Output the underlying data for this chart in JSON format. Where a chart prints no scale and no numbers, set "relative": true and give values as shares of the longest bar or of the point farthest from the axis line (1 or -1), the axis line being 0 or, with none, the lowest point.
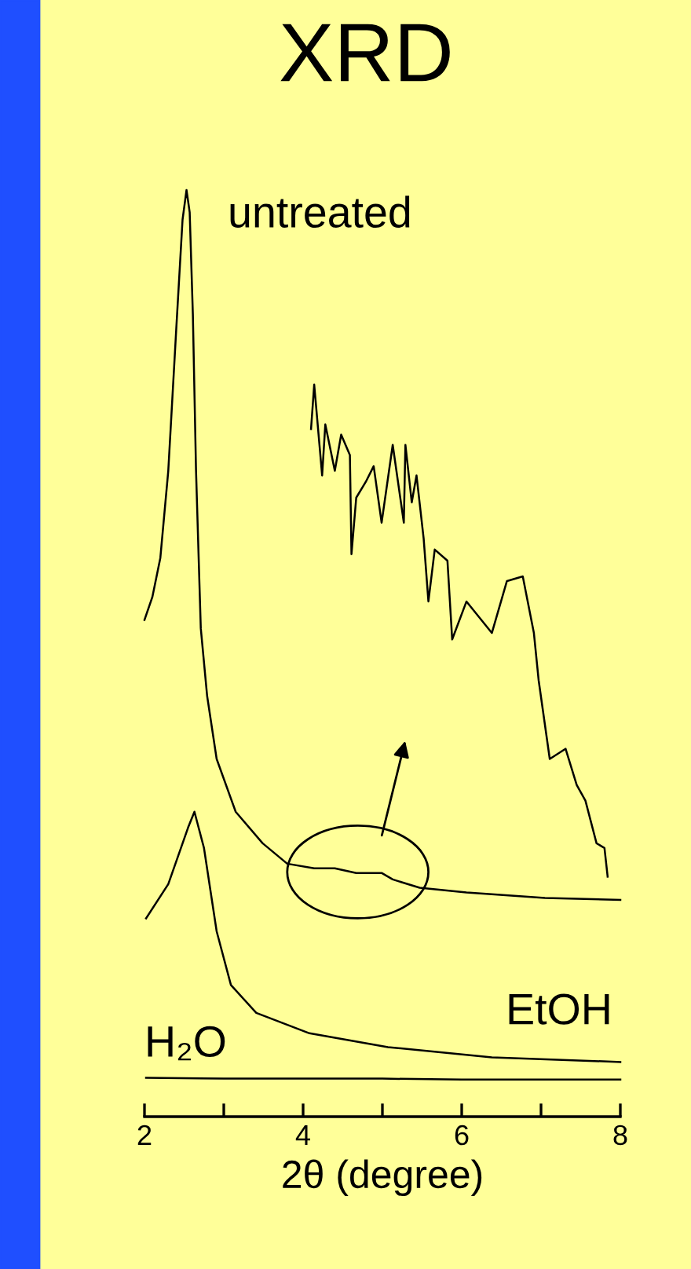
{
  "chart_data": {
    "type": "line",
    "title": "XRD",
    "xlabel": "2θ (degree)",
    "relative": true,
    "xlim": [
      2,
      8
    ],
    "xticks": [
      2,
      {
        "value": 3,
        "label": null
      },
      4,
      {
        "value": 5,
        "label": null
      },
      6,
      {
        "value": 7,
        "label": null
      },
      8
    ],
    "grid": false,
    "legend": false,
    "marker": "none",
    "line_style": "solid",
    "series": [
      {
        "name": "untreated",
        "color": "#000000",
        "x": [
          2.0,
          2.1,
          2.2,
          2.3,
          2.4,
          2.48,
          2.53,
          2.57,
          2.61,
          2.65,
          2.71,
          2.79,
          2.91,
          3.15,
          3.49,
          3.8,
          4.14,
          4.4,
          4.67,
          4.99,
          5.13,
          5.47,
          6.06,
          7.05,
          8.0
        ],
        "values": [
          0.536,
          0.561,
          0.603,
          0.697,
          0.849,
          0.968,
          1.0,
          0.976,
          0.866,
          0.697,
          0.527,
          0.454,
          0.386,
          0.329,
          0.295,
          0.273,
          0.268,
          0.268,
          0.263,
          0.263,
          0.256,
          0.247,
          0.242,
          0.236,
          0.234
        ]
      },
      {
        "name": "EtOH",
        "color": "#000000",
        "x": [
          2.02,
          2.3,
          2.55,
          2.63,
          2.75,
          2.91,
          3.09,
          3.41,
          4.08,
          5.07,
          6.38,
          8.0
        ],
        "values": [
          0.214,
          0.251,
          0.312,
          0.329,
          0.29,
          0.2,
          0.142,
          0.112,
          0.09,
          0.075,
          0.064,
          0.059
        ]
      },
      {
        "name": "H₂O",
        "color": "#000000",
        "x": [
          2.02,
          3.0,
          4.0,
          5.0,
          6.0,
          7.0,
          8.0
        ],
        "values": [
          0.042,
          0.041,
          0.041,
          0.041,
          0.04,
          0.04,
          0.04
        ]
      },
      {
        "color": "#000000",
        "x": [
          4.1,
          4.14,
          4.24,
          4.28,
          4.4,
          4.48,
          4.59,
          4.61,
          4.67,
          4.79,
          4.89,
          4.99,
          5.13,
          5.27,
          5.29,
          5.37,
          5.43,
          5.52,
          5.58,
          5.66,
          5.82,
          5.88,
          6.06,
          6.38,
          6.57,
          6.77,
          6.91,
          6.97,
          7.11,
          7.31,
          7.45,
          7.56,
          7.7,
          7.8,
          7.84
        ],
        "values": [
          0.742,
          0.79,
          0.692,
          0.747,
          0.697,
          0.736,
          0.714,
          0.607,
          0.668,
          0.685,
          0.702,
          0.641,
          0.725,
          0.641,
          0.725,
          0.663,
          0.692,
          0.624,
          0.556,
          0.612,
          0.6,
          0.515,
          0.556,
          0.522,
          0.578,
          0.583,
          0.522,
          0.471,
          0.386,
          0.397,
          0.358,
          0.341,
          0.295,
          0.29,
          0.259
        ]
      }
    ]
  }
}
